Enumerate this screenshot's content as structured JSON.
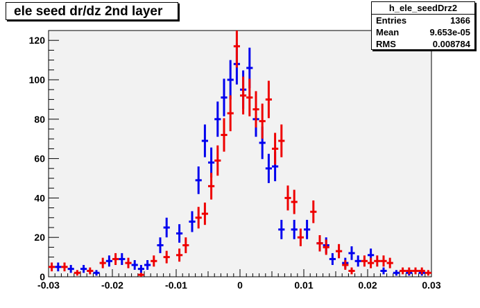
{
  "title": "ele seed dr/dz 2nd layer",
  "stats": {
    "name": "h_ele_seedDrz2",
    "rows": [
      {
        "label": "Entries",
        "value": "1366"
      },
      {
        "label": "Mean",
        "value": "9.653e-05"
      },
      {
        "label": "RMS",
        "value": "0.008784"
      }
    ]
  },
  "chart_data": {
    "type": "scatter",
    "title": "ele seed dr/dz 2nd layer",
    "xlabel": "",
    "ylabel": "",
    "xlim": [
      -0.03,
      0.03
    ],
    "ylim": [
      0,
      125
    ],
    "x_ticks": [
      -0.03,
      -0.02,
      -0.01,
      0,
      0.01,
      0.02,
      0.03
    ],
    "x_tick_labels": [
      "-0.03",
      "-0.02",
      "-0.01",
      "0",
      "0.01",
      "0.02",
      "0.03"
    ],
    "y_ticks": [
      0,
      20,
      40,
      60,
      80,
      100,
      120
    ],
    "y_tick_labels": [
      "0",
      "20",
      "40",
      "60",
      "80",
      "100",
      "120"
    ],
    "bin_half_width": 0.0005,
    "grid": false,
    "colors": {
      "frame_bg": "#f2f2f2",
      "blue": "#0000ee",
      "red": "#ee0000"
    },
    "series": [
      {
        "color": "#0000ee",
        "points": [
          [
            -0.0285,
            5
          ],
          [
            -0.0265,
            4
          ],
          [
            -0.0245,
            4
          ],
          [
            -0.0225,
            2
          ],
          [
            -0.0205,
            8
          ],
          [
            -0.0185,
            9
          ],
          [
            -0.0165,
            6
          ],
          [
            -0.0155,
            4
          ],
          [
            -0.0145,
            6
          ],
          [
            -0.0125,
            16
          ],
          [
            -0.0115,
            25
          ],
          [
            -0.0095,
            22
          ],
          [
            -0.0075,
            28
          ],
          [
            -0.0065,
            49
          ],
          [
            -0.0055,
            69
          ],
          [
            -0.0045,
            58
          ],
          [
            -0.0035,
            80
          ],
          [
            -0.0025,
            91
          ],
          [
            -0.0015,
            100
          ],
          [
            -0.0005,
            108
          ],
          [
            0.0005,
            95
          ],
          [
            0.0015,
            106
          ],
          [
            0.0025,
            80
          ],
          [
            0.0035,
            68
          ],
          [
            0.0045,
            55
          ],
          [
            0.0055,
            56
          ],
          [
            0.0065,
            24
          ],
          [
            0.0085,
            24
          ],
          [
            0.0105,
            24
          ],
          [
            0.0125,
            17
          ],
          [
            0.0135,
            16
          ],
          [
            0.0145,
            9
          ],
          [
            0.0165,
            7
          ],
          [
            0.0175,
            12
          ],
          [
            0.0185,
            8
          ],
          [
            0.0205,
            11
          ],
          [
            0.0225,
            3
          ],
          [
            0.0245,
            2
          ],
          [
            0.0265,
            2
          ],
          [
            0.0285,
            2
          ]
        ]
      },
      {
        "color": "#ee0000",
        "points": [
          [
            -0.0295,
            5
          ],
          [
            -0.0275,
            5
          ],
          [
            -0.0255,
            2
          ],
          [
            -0.0235,
            3
          ],
          [
            -0.0215,
            7
          ],
          [
            -0.0195,
            9
          ],
          [
            -0.0175,
            7
          ],
          [
            -0.0155,
            1
          ],
          [
            -0.0135,
            8
          ],
          [
            -0.0115,
            10
          ],
          [
            -0.0095,
            11
          ],
          [
            -0.0085,
            16
          ],
          [
            -0.0065,
            30
          ],
          [
            -0.0055,
            32
          ],
          [
            -0.0045,
            46
          ],
          [
            -0.0035,
            59
          ],
          [
            -0.0025,
            72
          ],
          [
            -0.0015,
            83
          ],
          [
            -0.0005,
            117
          ],
          [
            0.0005,
            92
          ],
          [
            0.0015,
            91
          ],
          [
            0.0025,
            85
          ],
          [
            0.0035,
            79
          ],
          [
            0.0045,
            90
          ],
          [
            0.0055,
            65
          ],
          [
            0.0065,
            69
          ],
          [
            0.0075,
            40
          ],
          [
            0.0085,
            38
          ],
          [
            0.0095,
            20
          ],
          [
            0.0115,
            33
          ],
          [
            0.0125,
            17
          ],
          [
            0.0135,
            15
          ],
          [
            0.0155,
            13
          ],
          [
            0.0165,
            6
          ],
          [
            0.0175,
            3
          ],
          [
            0.0195,
            8
          ],
          [
            0.0205,
            7
          ],
          [
            0.0215,
            8
          ],
          [
            0.0225,
            8
          ],
          [
            0.0235,
            7
          ],
          [
            0.0255,
            3
          ],
          [
            0.0265,
            3
          ],
          [
            0.0275,
            3
          ],
          [
            0.0285,
            3
          ],
          [
            0.0295,
            2
          ]
        ]
      }
    ]
  }
}
